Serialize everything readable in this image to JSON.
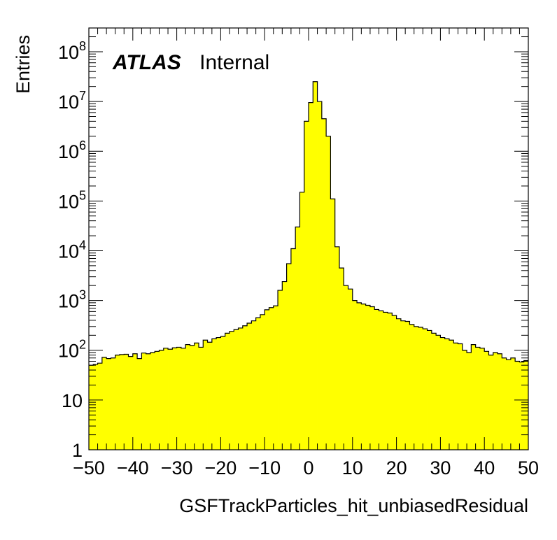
{
  "chart_data": {
    "type": "histogram",
    "xlabel": "GSFTrackParticles_hit_unbiasedResidual",
    "ylabel": "Entries",
    "xlim": [
      -50,
      50
    ],
    "ylim": [
      1,
      300000000
    ],
    "log_y": true,
    "grid": false,
    "bar_color": "#ffff00",
    "line_color": "#000000",
    "annotation": {
      "bold": "ATLAS",
      "normal": "Internal"
    },
    "x_ticks": [
      "−50",
      "−40",
      "−30",
      "−20",
      "−10",
      "0",
      "10",
      "20",
      "30",
      "40",
      "50"
    ],
    "x_tick_values": [
      -50,
      -40,
      -30,
      -20,
      -10,
      0,
      10,
      20,
      30,
      40,
      50
    ],
    "y_ticks": [
      {
        "value": 1,
        "base": "1",
        "exp": ""
      },
      {
        "value": 10,
        "base": "10",
        "exp": ""
      },
      {
        "value": 100,
        "base": "10",
        "exp": "2"
      },
      {
        "value": 1000,
        "base": "10",
        "exp": "3"
      },
      {
        "value": 10000,
        "base": "10",
        "exp": "4"
      },
      {
        "value": 100000,
        "base": "10",
        "exp": "5"
      },
      {
        "value": 1000000,
        "base": "10",
        "exp": "6"
      },
      {
        "value": 10000000,
        "base": "10",
        "exp": "7"
      },
      {
        "value": 100000000,
        "base": "10",
        "exp": "8"
      }
    ],
    "bin_width": 1,
    "bin_low_edges": [
      -50,
      -49,
      -48,
      -47,
      -46,
      -45,
      -44,
      -43,
      -42,
      -41,
      -40,
      -39,
      -38,
      -37,
      -36,
      -35,
      -34,
      -33,
      -32,
      -31,
      -30,
      -29,
      -28,
      -27,
      -26,
      -25,
      -24,
      -23,
      -22,
      -21,
      -20,
      -19,
      -18,
      -17,
      -16,
      -15,
      -14,
      -13,
      -12,
      -11,
      -10,
      -9,
      -8,
      -7,
      -6,
      -5,
      -4,
      -3,
      -2,
      -1,
      0,
      1,
      2,
      3,
      4,
      5,
      6,
      7,
      8,
      9,
      10,
      11,
      12,
      13,
      14,
      15,
      16,
      17,
      18,
      19,
      20,
      21,
      22,
      23,
      24,
      25,
      26,
      27,
      28,
      29,
      30,
      31,
      32,
      33,
      34,
      35,
      36,
      37,
      38,
      39,
      40,
      41,
      42,
      43,
      44,
      45,
      46,
      47,
      48,
      49
    ],
    "values": [
      50,
      52,
      55,
      72,
      68,
      70,
      80,
      82,
      83,
      75,
      85,
      68,
      88,
      85,
      90,
      95,
      100,
      110,
      105,
      112,
      115,
      110,
      130,
      125,
      140,
      115,
      160,
      145,
      170,
      180,
      190,
      220,
      240,
      260,
      280,
      310,
      350,
      390,
      450,
      520,
      650,
      720,
      780,
      1600,
      2400,
      5500,
      11000,
      30000,
      150000,
      4000000,
      9500000,
      25000000,
      10000000,
      4500000,
      2000000,
      110000,
      12000,
      4500,
      2000,
      1700,
      1000,
      900,
      850,
      800,
      750,
      660,
      620,
      580,
      560,
      500,
      430,
      390,
      380,
      330,
      300,
      290,
      270,
      250,
      220,
      200,
      180,
      170,
      160,
      140,
      135,
      100,
      90,
      130,
      115,
      110,
      95,
      80,
      90,
      85,
      70,
      65,
      70,
      60,
      58,
      62
    ]
  }
}
